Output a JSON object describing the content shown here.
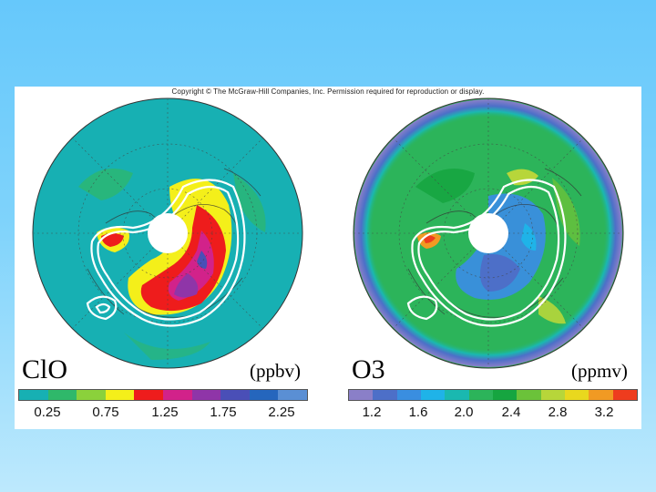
{
  "copyright": "Copyright © The McGraw-Hill Companies, Inc. Permission required for reproduction or display.",
  "left_map": {
    "species": "ClO",
    "units": "(ppbv)",
    "colorbar": [
      "#17b0b3",
      "#2fb86a",
      "#8bd13b",
      "#f4ef1a",
      "#ee1c1c",
      "#d2228a",
      "#8f35a8",
      "#4a4fb7",
      "#2566bd",
      "#5a8fd4"
    ],
    "ticks": [
      "0.25",
      "0.75",
      "1.25",
      "1.75",
      "2.25"
    ]
  },
  "right_map": {
    "species": "O3",
    "units": "(ppmv)",
    "colorbar": [
      "#8a7fc8",
      "#4d6fc8",
      "#3a8ee0",
      "#1fb3e8",
      "#1ab8b0",
      "#2cb45a",
      "#16a540",
      "#6bc23a",
      "#b7d63a",
      "#e9d81e",
      "#f19a23",
      "#ee3c1e"
    ],
    "ticks": [
      "1.2",
      "1.6",
      "2.0",
      "2.4",
      "2.8",
      "3.2"
    ]
  }
}
